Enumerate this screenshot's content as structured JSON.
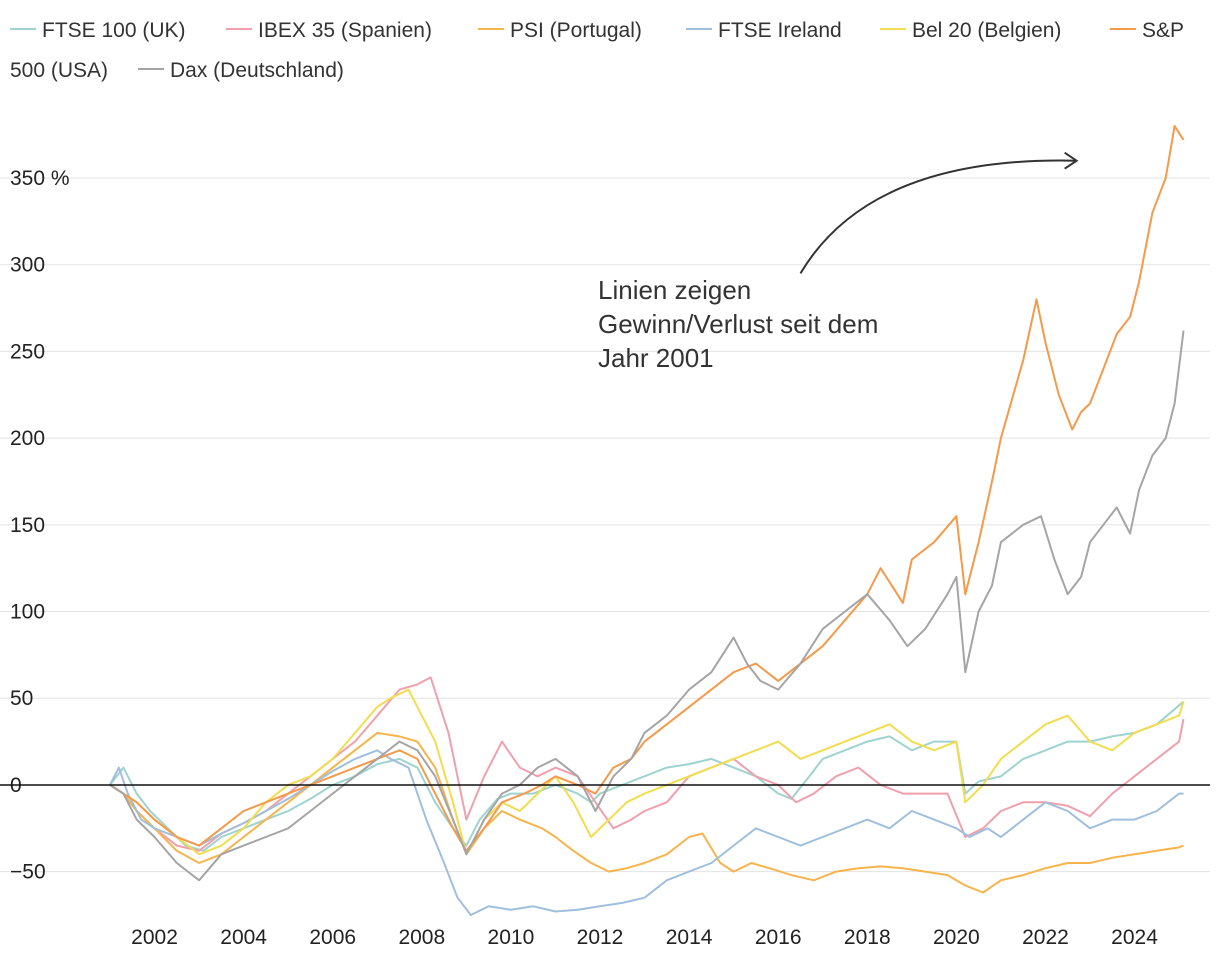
{
  "chart_data": {
    "type": "line",
    "title": "",
    "xlabel": "",
    "ylabel": "",
    "y_unit": "%",
    "xlim": [
      2001.0,
      2025.2
    ],
    "ylim": [
      -75,
      395
    ],
    "yticks": [
      {
        "value": -50,
        "label": "−50"
      },
      {
        "value": 0,
        "label": "0"
      },
      {
        "value": 50,
        "label": "50"
      },
      {
        "value": 100,
        "label": "100"
      },
      {
        "value": 150,
        "label": "150"
      },
      {
        "value": 200,
        "label": "200"
      },
      {
        "value": 250,
        "label": "250"
      },
      {
        "value": 300,
        "label": "300"
      },
      {
        "value": 350,
        "label": "350 %"
      }
    ],
    "xticks": [
      {
        "value": 2002,
        "label": "2002"
      },
      {
        "value": 2004,
        "label": "2004"
      },
      {
        "value": 2006,
        "label": "2006"
      },
      {
        "value": 2008,
        "label": "2008"
      },
      {
        "value": 2010,
        "label": "2010"
      },
      {
        "value": 2012,
        "label": "2012"
      },
      {
        "value": 2014,
        "label": "2014"
      },
      {
        "value": 2016,
        "label": "2016"
      },
      {
        "value": 2018,
        "label": "2018"
      },
      {
        "value": 2020,
        "label": "2020"
      },
      {
        "value": 2022,
        "label": "2022"
      },
      {
        "value": 2024,
        "label": "2024"
      }
    ],
    "grid": true,
    "legend_position": "top",
    "annotation": {
      "lines": [
        "Linien zeigen",
        "Gewinn/Verlust seit dem",
        "Jahr 2001"
      ],
      "arrow_from": [
        2016.5,
        295
      ],
      "arrow_to": [
        2022.7,
        360
      ]
    },
    "series": [
      {
        "name": "FTSE 100 (UK)",
        "color": "#9fd3cf",
        "x": [
          2001.0,
          2001.3,
          2001.6,
          2001.9,
          2002.3,
          2002.7,
          2003.1,
          2003.5,
          2004.0,
          2004.5,
          2005.0,
          2005.5,
          2006.0,
          2006.5,
          2007.0,
          2007.5,
          2007.9,
          2008.3,
          2008.7,
          2009.0,
          2009.3,
          2009.7,
          2010.0,
          2010.5,
          2011.0,
          2011.5,
          2011.8,
          2012.0,
          2012.5,
          2013.0,
          2013.5,
          2014.0,
          2014.5,
          2015.0,
          2015.5,
          2016.0,
          2016.3,
          2016.7,
          2017.0,
          2017.5,
          2018.0,
          2018.5,
          2019.0,
          2019.5,
          2020.0,
          2020.2,
          2020.5,
          2021.0,
          2021.5,
          2022.0,
          2022.5,
          2023.0,
          2023.5,
          2024.0,
          2024.5,
          2025.1
        ],
        "values": [
          0,
          10,
          -5,
          -15,
          -25,
          -35,
          -38,
          -30,
          -25,
          -20,
          -15,
          -8,
          0,
          5,
          12,
          15,
          10,
          -10,
          -25,
          -35,
          -20,
          -8,
          -5,
          -5,
          0,
          -5,
          -10,
          -5,
          0,
          5,
          10,
          12,
          15,
          10,
          5,
          -5,
          -8,
          5,
          15,
          20,
          25,
          28,
          20,
          25,
          25,
          -5,
          2,
          5,
          15,
          20,
          25,
          25,
          28,
          30,
          35,
          48
        ]
      },
      {
        "name": "IBEX 35 (Spanien)",
        "color": "#f0a0ad",
        "x": [
          2001.0,
          2001.3,
          2001.6,
          2002.0,
          2002.5,
          2003.0,
          2003.5,
          2004.0,
          2004.5,
          2005.0,
          2005.5,
          2006.0,
          2006.5,
          2007.0,
          2007.5,
          2007.9,
          2008.2,
          2008.6,
          2009.0,
          2009.4,
          2009.8,
          2010.2,
          2010.6,
          2011.0,
          2011.5,
          2011.9,
          2012.3,
          2012.7,
          2013.0,
          2013.5,
          2014.0,
          2014.5,
          2015.0,
          2015.5,
          2016.0,
          2016.4,
          2016.8,
          2017.3,
          2017.8,
          2018.3,
          2018.8,
          2019.3,
          2019.8,
          2020.2,
          2020.6,
          2021.0,
          2021.5,
          2022.0,
          2022.5,
          2023.0,
          2023.5,
          2024.0,
          2024.5,
          2025.0,
          2025.1
        ],
        "values": [
          0,
          -5,
          -15,
          -25,
          -35,
          -38,
          -28,
          -22,
          -15,
          -5,
          5,
          15,
          25,
          40,
          55,
          58,
          62,
          30,
          -20,
          5,
          25,
          10,
          5,
          10,
          5,
          -10,
          -25,
          -20,
          -15,
          -10,
          5,
          10,
          15,
          5,
          0,
          -10,
          -5,
          5,
          10,
          0,
          -5,
          -5,
          -5,
          -30,
          -25,
          -15,
          -10,
          -10,
          -12,
          -18,
          -5,
          5,
          15,
          25,
          38
        ]
      },
      {
        "name": "PSI (Portugal)",
        "color": "#f7b44c",
        "x": [
          2001.0,
          2001.3,
          2001.6,
          2002.0,
          2002.5,
          2003.0,
          2003.5,
          2004.0,
          2004.5,
          2005.0,
          2005.5,
          2006.0,
          2006.5,
          2007.0,
          2007.5,
          2007.9,
          2008.3,
          2008.7,
          2009.0,
          2009.4,
          2009.8,
          2010.2,
          2010.7,
          2011.0,
          2011.4,
          2011.8,
          2012.2,
          2012.6,
          2013.0,
          2013.5,
          2014.0,
          2014.3,
          2014.7,
          2015.0,
          2015.4,
          2015.8,
          2016.3,
          2016.8,
          2017.3,
          2017.8,
          2018.3,
          2018.8,
          2019.3,
          2019.8,
          2020.2,
          2020.6,
          2021.0,
          2021.5,
          2022.0,
          2022.5,
          2023.0,
          2023.5,
          2024.0,
          2024.5,
          2025.0,
          2025.1
        ],
        "values": [
          0,
          -5,
          -15,
          -25,
          -38,
          -45,
          -40,
          -30,
          -20,
          -10,
          0,
          10,
          20,
          30,
          28,
          25,
          10,
          -20,
          -40,
          -25,
          -15,
          -20,
          -25,
          -30,
          -38,
          -45,
          -50,
          -48,
          -45,
          -40,
          -30,
          -28,
          -45,
          -50,
          -45,
          -48,
          -52,
          -55,
          -50,
          -48,
          -47,
          -48,
          -50,
          -52,
          -58,
          -62,
          -55,
          -52,
          -48,
          -45,
          -45,
          -42,
          -40,
          -38,
          -36,
          -35
        ]
      },
      {
        "name": "FTSE Ireland",
        "color": "#9fbfdc",
        "x": [
          2001.0,
          2001.2,
          2001.4,
          2001.7,
          2002.0,
          2002.5,
          2003.0,
          2003.5,
          2004.0,
          2004.5,
          2005.0,
          2005.5,
          2006.0,
          2006.5,
          2007.0,
          2007.3,
          2007.7,
          2008.1,
          2008.5,
          2008.8,
          2009.1,
          2009.5,
          2010.0,
          2010.5,
          2011.0,
          2011.5,
          2012.0,
          2012.5,
          2013.0,
          2013.5,
          2014.0,
          2014.5,
          2015.0,
          2015.5,
          2016.0,
          2016.5,
          2017.0,
          2017.5,
          2018.0,
          2018.5,
          2019.0,
          2019.5,
          2020.0,
          2020.3,
          2020.7,
          2021.0,
          2021.5,
          2022.0,
          2022.5,
          2023.0,
          2023.5,
          2024.0,
          2024.5,
          2025.0,
          2025.1
        ],
        "values": [
          0,
          10,
          -5,
          -20,
          -25,
          -30,
          -35,
          -28,
          -22,
          -15,
          -8,
          0,
          8,
          15,
          20,
          15,
          10,
          -20,
          -45,
          -65,
          -75,
          -70,
          -72,
          -70,
          -73,
          -72,
          -70,
          -68,
          -65,
          -55,
          -50,
          -45,
          -35,
          -25,
          -30,
          -35,
          -30,
          -25,
          -20,
          -25,
          -15,
          -20,
          -25,
          -30,
          -25,
          -30,
          -20,
          -10,
          -15,
          -25,
          -20,
          -20,
          -15,
          -5,
          -5
        ]
      },
      {
        "name": "Bel 20 (Belgien)",
        "color": "#f2dc4f",
        "x": [
          2001.0,
          2001.3,
          2001.6,
          2002.0,
          2002.5,
          2003.0,
          2003.5,
          2004.0,
          2004.5,
          2005.0,
          2005.5,
          2006.0,
          2006.5,
          2007.0,
          2007.3,
          2007.7,
          2008.0,
          2008.3,
          2008.7,
          2009.0,
          2009.4,
          2009.8,
          2010.2,
          2010.6,
          2011.0,
          2011.4,
          2011.8,
          2012.2,
          2012.6,
          2013.0,
          2013.5,
          2014.0,
          2014.5,
          2015.0,
          2015.5,
          2016.0,
          2016.5,
          2017.0,
          2017.5,
          2018.0,
          2018.5,
          2019.0,
          2019.5,
          2020.0,
          2020.2,
          2020.6,
          2021.0,
          2021.5,
          2022.0,
          2022.5,
          2023.0,
          2023.5,
          2024.0,
          2024.5,
          2025.0,
          2025.1
        ],
        "values": [
          0,
          -5,
          -10,
          -20,
          -30,
          -40,
          -35,
          -25,
          -10,
          0,
          5,
          15,
          30,
          45,
          50,
          55,
          40,
          25,
          -10,
          -40,
          -20,
          -10,
          -15,
          -5,
          5,
          -10,
          -30,
          -20,
          -10,
          -5,
          0,
          5,
          10,
          15,
          20,
          25,
          15,
          20,
          25,
          30,
          35,
          25,
          20,
          25,
          -10,
          0,
          15,
          25,
          35,
          40,
          25,
          20,
          30,
          35,
          40,
          48
        ]
      },
      {
        "name": "S&P 500 (USA)",
        "color": "#f5994a",
        "x": [
          2001.0,
          2001.3,
          2001.6,
          2002.0,
          2002.5,
          2003.0,
          2003.5,
          2004.0,
          2004.5,
          2005.0,
          2005.5,
          2006.0,
          2006.5,
          2007.0,
          2007.5,
          2007.9,
          2008.3,
          2008.7,
          2009.0,
          2009.4,
          2009.8,
          2010.3,
          2010.7,
          2011.0,
          2011.5,
          2011.9,
          2012.3,
          2012.7,
          2013.0,
          2013.5,
          2014.0,
          2014.5,
          2015.0,
          2015.5,
          2016.0,
          2016.5,
          2017.0,
          2017.5,
          2018.0,
          2018.3,
          2018.8,
          2019.0,
          2019.5,
          2020.0,
          2020.2,
          2020.5,
          2020.8,
          2021.0,
          2021.5,
          2021.8,
          2022.0,
          2022.3,
          2022.6,
          2022.8,
          2023.0,
          2023.3,
          2023.6,
          2023.9,
          2024.1,
          2024.4,
          2024.7,
          2024.9,
          2025.1
        ],
        "values": [
          0,
          -5,
          -10,
          -20,
          -30,
          -35,
          -25,
          -15,
          -10,
          -5,
          0,
          5,
          10,
          15,
          20,
          15,
          -5,
          -25,
          -38,
          -25,
          -10,
          -5,
          0,
          5,
          0,
          -5,
          10,
          15,
          25,
          35,
          45,
          55,
          65,
          70,
          60,
          70,
          80,
          95,
          110,
          125,
          105,
          130,
          140,
          155,
          110,
          140,
          175,
          200,
          245,
          280,
          255,
          225,
          205,
          215,
          220,
          240,
          260,
          270,
          290,
          330,
          350,
          380,
          372
        ]
      },
      {
        "name": "Dax (Deutschland)",
        "color": "#a5a5a5",
        "x": [
          2001.0,
          2001.3,
          2001.6,
          2002.0,
          2002.5,
          2003.0,
          2003.5,
          2004.0,
          2004.5,
          2005.0,
          2005.5,
          2006.0,
          2006.5,
          2007.0,
          2007.5,
          2007.9,
          2008.3,
          2008.7,
          2009.0,
          2009.4,
          2009.8,
          2010.2,
          2010.6,
          2011.0,
          2011.5,
          2011.9,
          2012.3,
          2012.7,
          2013.0,
          2013.5,
          2014.0,
          2014.5,
          2015.0,
          2015.3,
          2015.6,
          2016.0,
          2016.5,
          2017.0,
          2017.5,
          2018.0,
          2018.5,
          2018.9,
          2019.3,
          2019.8,
          2020.0,
          2020.2,
          2020.5,
          2020.8,
          2021.0,
          2021.5,
          2021.9,
          2022.2,
          2022.5,
          2022.8,
          2023.0,
          2023.3,
          2023.6,
          2023.9,
          2024.1,
          2024.4,
          2024.7,
          2024.9,
          2025.1
        ],
        "values": [
          0,
          -5,
          -20,
          -30,
          -45,
          -55,
          -40,
          -35,
          -30,
          -25,
          -15,
          -5,
          5,
          15,
          25,
          20,
          5,
          -20,
          -40,
          -20,
          -5,
          0,
          10,
          15,
          5,
          -15,
          5,
          15,
          30,
          40,
          55,
          65,
          85,
          70,
          60,
          55,
          70,
          90,
          100,
          110,
          95,
          80,
          90,
          110,
          120,
          65,
          100,
          115,
          140,
          150,
          155,
          130,
          110,
          120,
          140,
          150,
          160,
          145,
          170,
          190,
          200,
          220,
          262
        ]
      }
    ]
  }
}
